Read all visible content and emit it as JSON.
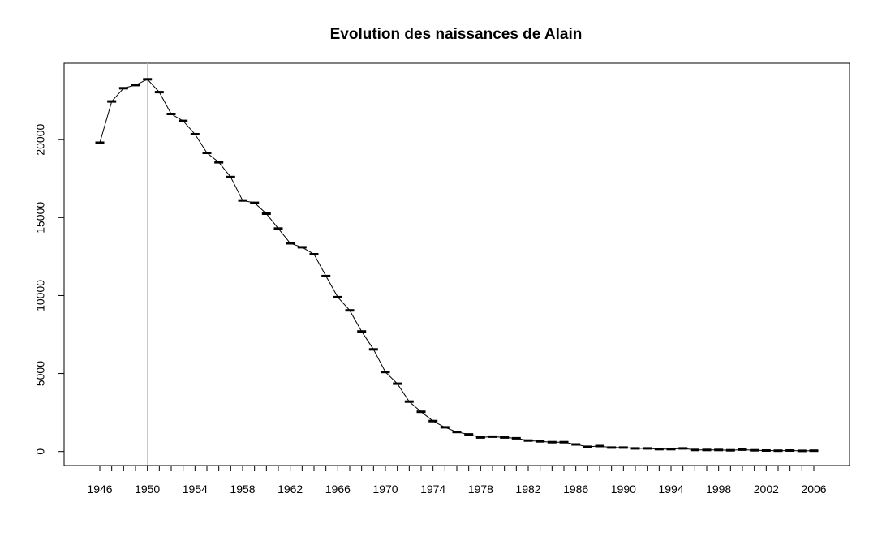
{
  "chart_data": {
    "type": "line",
    "title": "Evolution des naissances de Alain",
    "xlabel": "",
    "ylabel": "",
    "xlim": [
      1943,
      2009
    ],
    "ylim": [
      -900,
      24900
    ],
    "x_tick_labels": [
      "1946",
      "1950",
      "1954",
      "1958",
      "1962",
      "1966",
      "1970",
      "1974",
      "1978",
      "1982",
      "1986",
      "1990",
      "1994",
      "1998",
      "2002",
      "2006"
    ],
    "y_tick_labels": [
      "0",
      "5000",
      "10000",
      "15000",
      "20000"
    ],
    "grid": false,
    "legend": "none",
    "reference_line_x": 1950,
    "colors": {
      "line": "#000000",
      "reference_line": "#bebebe",
      "frame": "#000000"
    },
    "x": [
      1946,
      1947,
      1948,
      1949,
      1950,
      1951,
      1952,
      1953,
      1954,
      1955,
      1956,
      1957,
      1958,
      1959,
      1960,
      1961,
      1962,
      1963,
      1964,
      1965,
      1966,
      1967,
      1968,
      1969,
      1970,
      1971,
      1972,
      1973,
      1974,
      1975,
      1976,
      1977,
      1978,
      1979,
      1980,
      1981,
      1982,
      1983,
      1984,
      1985,
      1986,
      1987,
      1988,
      1989,
      1990,
      1991,
      1992,
      1993,
      1994,
      1995,
      1996,
      1997,
      1998,
      1999,
      2000,
      2001,
      2002,
      2003,
      2004,
      2005,
      2006
    ],
    "values": [
      19800,
      22450,
      23300,
      23500,
      23870,
      23050,
      21650,
      21200,
      20350,
      19150,
      18550,
      17600,
      16100,
      15950,
      15250,
      14300,
      13350,
      13100,
      12650,
      11250,
      9900,
      9050,
      7700,
      6550,
      5100,
      4350,
      3200,
      2550,
      1950,
      1550,
      1250,
      1100,
      900,
      950,
      900,
      850,
      700,
      650,
      600,
      600,
      450,
      300,
      350,
      250,
      250,
      200,
      200,
      150,
      150,
      200,
      100,
      100,
      100,
      80,
      120,
      80,
      60,
      50,
      60,
      40,
      50
    ]
  }
}
